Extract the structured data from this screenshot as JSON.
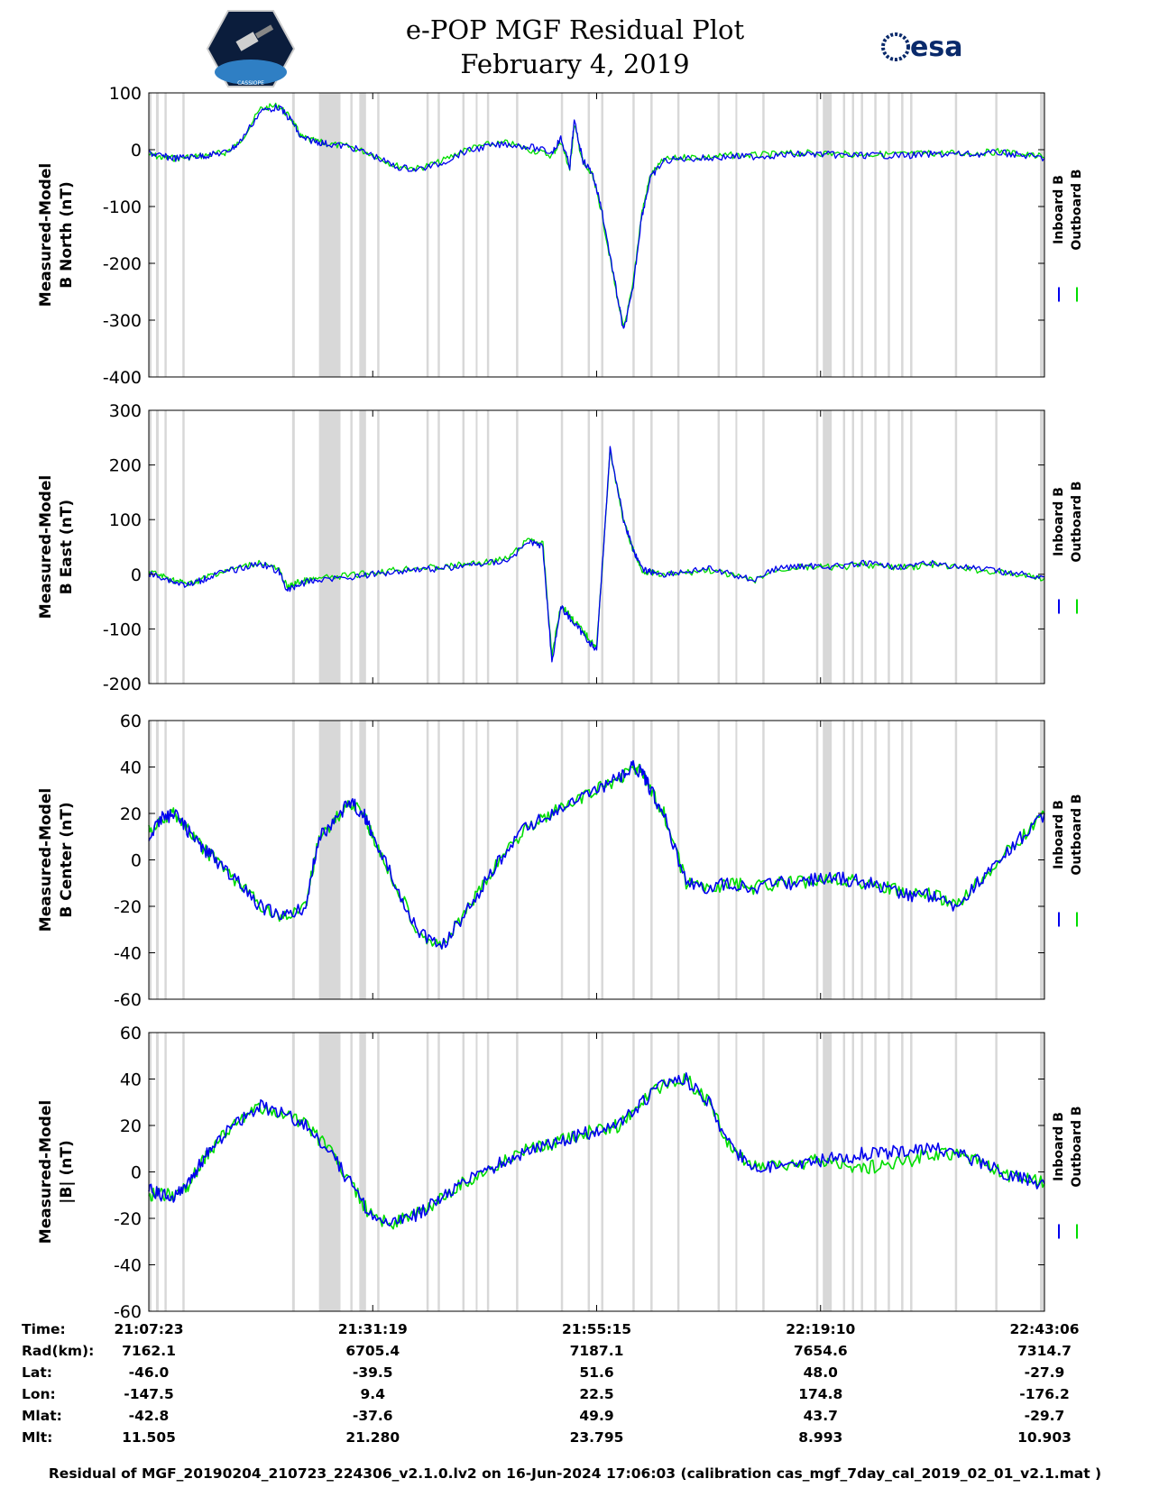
{
  "header": {
    "title_line1": "e-POP MGF Residual Plot",
    "title_line2": "February 4, 2019",
    "logo_left_text": "CASSIOPE",
    "logo_right_text": "esa"
  },
  "colors": {
    "inboard": "#0000ee",
    "outboard": "#00dd00",
    "gap": "#d8d8d8"
  },
  "chart_data": [
    {
      "type": "line",
      "ylabel_line1": "Measured-Model",
      "ylabel_line2": "B North (nT)",
      "ylim": [
        -400,
        100
      ],
      "yticks": [
        100,
        0,
        -100,
        -200,
        -300,
        -400
      ],
      "legend": [
        "Inboard B",
        "Outboard B"
      ],
      "x": [
        0,
        3,
        6,
        10,
        13,
        17,
        20,
        25,
        29,
        32,
        34,
        37,
        40,
        45,
        50,
        55,
        60,
        65,
        70,
        75,
        80,
        85,
        90,
        92,
        94,
        95,
        97,
        99,
        101,
        104,
        106,
        108,
        110,
        112,
        115,
        120,
        125,
        130,
        135,
        140,
        145,
        150,
        155,
        160,
        165,
        170,
        175,
        180,
        185,
        190,
        195,
        200
      ],
      "series": [
        {
          "name": "Inboard B",
          "values": [
            -5,
            -12,
            -15,
            -12,
            -10,
            -5,
            10,
            68,
            75,
            50,
            20,
            15,
            10,
            5,
            -10,
            -30,
            -35,
            -25,
            -5,
            5,
            10,
            5,
            -5,
            20,
            -30,
            50,
            -20,
            -40,
            -100,
            -230,
            -320,
            -250,
            -120,
            -50,
            -20,
            -15,
            -15,
            -12,
            -12,
            -10,
            -8,
            -8,
            -10,
            -10,
            -10,
            -10,
            -8,
            -8,
            -8,
            -5,
            -10,
            -15
          ]
        },
        {
          "name": "Outboard B",
          "values": [
            -8,
            -14,
            -15,
            -12,
            -10,
            -5,
            10,
            72,
            78,
            52,
            22,
            15,
            10,
            5,
            -8,
            -28,
            -33,
            -22,
            -2,
            8,
            12,
            0,
            -10,
            15,
            -35,
            45,
            -25,
            -45,
            -105,
            -235,
            -315,
            -245,
            -115,
            -45,
            -18,
            -13,
            -13,
            -10,
            -10,
            -8,
            -6,
            -6,
            -8,
            -8,
            -8,
            -8,
            -6,
            -6,
            -6,
            -3,
            -8,
            -13
          ]
        }
      ]
    },
    {
      "type": "line",
      "ylabel_line1": "Measured-Model",
      "ylabel_line2": "B East (nT)",
      "ylim": [
        -200,
        300
      ],
      "yticks": [
        300,
        200,
        100,
        0,
        -100,
        -200
      ],
      "legend": [
        "Inboard B",
        "Outboard B"
      ],
      "x": [
        0,
        3,
        6,
        9,
        12,
        15,
        20,
        25,
        29,
        31,
        33,
        35,
        38,
        45,
        50,
        55,
        60,
        65,
        70,
        75,
        80,
        85,
        88,
        90,
        92,
        94,
        96,
        98,
        100,
        103,
        106,
        108,
        110,
        112,
        115,
        120,
        125,
        130,
        135,
        140,
        145,
        150,
        155,
        160,
        165,
        170,
        175,
        180,
        185,
        190,
        195,
        200
      ],
      "series": [
        {
          "name": "Inboard B",
          "values": [
            0,
            -5,
            -15,
            -20,
            -10,
            0,
            10,
            20,
            5,
            -30,
            -20,
            -15,
            -10,
            -5,
            0,
            5,
            10,
            10,
            15,
            20,
            25,
            60,
            50,
            -160,
            -60,
            -80,
            -100,
            -120,
            -140,
            230,
            100,
            50,
            10,
            5,
            0,
            5,
            10,
            0,
            -10,
            10,
            15,
            15,
            15,
            20,
            15,
            15,
            20,
            15,
            10,
            5,
            0,
            -5
          ]
        },
        {
          "name": "Outboard B",
          "values": [
            5,
            -3,
            -12,
            -18,
            -8,
            2,
            12,
            22,
            8,
            -25,
            -15,
            -12,
            -8,
            -2,
            3,
            8,
            12,
            12,
            18,
            22,
            28,
            65,
            55,
            -150,
            -55,
            -75,
            -95,
            -115,
            -135,
            225,
            98,
            48,
            8,
            3,
            -2,
            3,
            8,
            -2,
            -12,
            8,
            13,
            13,
            13,
            18,
            13,
            13,
            18,
            13,
            8,
            3,
            -2,
            -7
          ]
        }
      ]
    },
    {
      "type": "line",
      "ylabel_line1": "Measured-Model",
      "ylabel_line2": "B Center (nT)",
      "ylim": [
        -60,
        60
      ],
      "yticks": [
        60,
        40,
        20,
        0,
        -20,
        -40,
        -60
      ],
      "legend": [
        "Inboard B",
        "Outboard B"
      ],
      "x": [
        0,
        3,
        6,
        9,
        12,
        15,
        20,
        25,
        30,
        35,
        38,
        42,
        45,
        48,
        50,
        55,
        60,
        65,
        70,
        75,
        80,
        85,
        90,
        95,
        100,
        105,
        108,
        110,
        112,
        115,
        120,
        125,
        130,
        135,
        140,
        145,
        150,
        155,
        160,
        165,
        170,
        175,
        180,
        185,
        190,
        195,
        200
      ],
      "series": [
        {
          "name": "Inboard B",
          "values": [
            10,
            18,
            20,
            12,
            5,
            0,
            -10,
            -20,
            -25,
            -20,
            10,
            18,
            25,
            20,
            10,
            -10,
            -30,
            -38,
            -25,
            -10,
            5,
            15,
            20,
            25,
            30,
            35,
            40,
            38,
            30,
            20,
            -10,
            -12,
            -10,
            -12,
            -10,
            -10,
            -8,
            -8,
            -10,
            -12,
            -15,
            -15,
            -20,
            -10,
            0,
            10,
            20
          ]
        },
        {
          "name": "Outboard B",
          "values": [
            12,
            18,
            20,
            12,
            5,
            0,
            -10,
            -20,
            -25,
            -20,
            10,
            18,
            25,
            20,
            10,
            -10,
            -30,
            -38,
            -25,
            -10,
            5,
            15,
            20,
            25,
            30,
            35,
            40,
            38,
            30,
            20,
            -10,
            -12,
            -10,
            -12,
            -10,
            -10,
            -8,
            -8,
            -10,
            -12,
            -15,
            -15,
            -20,
            -10,
            0,
            10,
            20
          ]
        }
      ]
    },
    {
      "type": "line",
      "ylabel_line1": "Measured-Model",
      "ylabel_line2": "|B| (nT)",
      "ylim": [
        -60,
        60
      ],
      "yticks": [
        60,
        40,
        20,
        0,
        -20,
        -40,
        -60
      ],
      "legend": [
        "Inboard B",
        "Outboard B"
      ],
      "x": [
        0,
        3,
        6,
        9,
        12,
        15,
        20,
        25,
        30,
        35,
        40,
        45,
        50,
        55,
        60,
        65,
        70,
        75,
        80,
        85,
        90,
        95,
        100,
        105,
        110,
        115,
        120,
        125,
        130,
        135,
        140,
        145,
        150,
        155,
        160,
        165,
        170,
        175,
        180,
        185,
        190,
        195,
        200
      ],
      "series": [
        {
          "name": "Inboard B",
          "values": [
            -8,
            -10,
            -10,
            -5,
            5,
            12,
            22,
            28,
            25,
            20,
            10,
            -5,
            -20,
            -22,
            -18,
            -12,
            -5,
            0,
            5,
            10,
            12,
            15,
            18,
            20,
            30,
            38,
            40,
            30,
            10,
            3,
            2,
            3,
            5,
            6,
            8,
            8,
            10,
            10,
            8,
            5,
            0,
            -3,
            -5
          ]
        },
        {
          "name": "Outboard B",
          "values": [
            -10,
            -10,
            -10,
            -5,
            5,
            12,
            22,
            28,
            25,
            20,
            10,
            -5,
            -20,
            -22,
            -18,
            -12,
            -5,
            0,
            5,
            10,
            12,
            15,
            18,
            20,
            30,
            38,
            40,
            30,
            10,
            3,
            2,
            3,
            5,
            3,
            2,
            3,
            5,
            8,
            8,
            5,
            0,
            -3,
            -5
          ]
        }
      ]
    }
  ],
  "gap_bands": [
    [
      0,
      0.6
    ],
    [
      1.6,
      2.2
    ],
    [
      3.5,
      4.0
    ],
    [
      7.5,
      8.0
    ],
    [
      32.0,
      32.6
    ],
    [
      38.0,
      42.8
    ],
    [
      45.0,
      45.5
    ],
    [
      47.0,
      48.5
    ],
    [
      51.0,
      51.5
    ],
    [
      62.0,
      62.5
    ],
    [
      64.5,
      65.0
    ],
    [
      70.0,
      70.5
    ],
    [
      73.0,
      73.4
    ],
    [
      75.5,
      76.0
    ],
    [
      82.0,
      82.5
    ],
    [
      92.0,
      92.5
    ],
    [
      98.0,
      98.5
    ],
    [
      101.0,
      101.5
    ],
    [
      108.0,
      108.5
    ],
    [
      112.0,
      112.5
    ],
    [
      118.0,
      118.5
    ],
    [
      127.0,
      127.5
    ],
    [
      131.0,
      131.4
    ],
    [
      137.0,
      137.5
    ],
    [
      149.0,
      149.5
    ],
    [
      150.5,
      152.5
    ],
    [
      155.0,
      155.5
    ],
    [
      157.0,
      157.5
    ],
    [
      159.0,
      159.5
    ],
    [
      162.0,
      162.5
    ],
    [
      165.0,
      165.5
    ],
    [
      168.0,
      168.5
    ],
    [
      170.0,
      170.5
    ],
    [
      180.0,
      180.5
    ],
    [
      189.0,
      189.5
    ],
    [
      199.0,
      200.0
    ]
  ],
  "info_table": {
    "labels": [
      "Time:",
      "Rad(km):",
      "Lat:",
      "Lon:",
      "Mlat:",
      "Mlt:"
    ],
    "columns": [
      [
        "21:07:23",
        "7162.1",
        "-46.0",
        "-147.5",
        "-42.8",
        "11.505"
      ],
      [
        "21:31:19",
        "6705.4",
        "-39.5",
        "9.4",
        "-37.6",
        "21.280"
      ],
      [
        "21:55:15",
        "7187.1",
        "51.6",
        "22.5",
        "49.9",
        "23.795"
      ],
      [
        "22:19:10",
        "7654.6",
        "48.0",
        "174.8",
        "43.7",
        "8.993"
      ],
      [
        "22:43:06",
        "7314.7",
        "-27.9",
        "-176.2",
        "-29.7",
        "10.903"
      ]
    ]
  },
  "footer": "Residual of MGF_20190204_210723_224306_v2.1.0.lv2 on 16-Jun-2024 17:06:03 (calibration cas_mgf_7day_cal_2019_02_01_v2.1.mat )"
}
